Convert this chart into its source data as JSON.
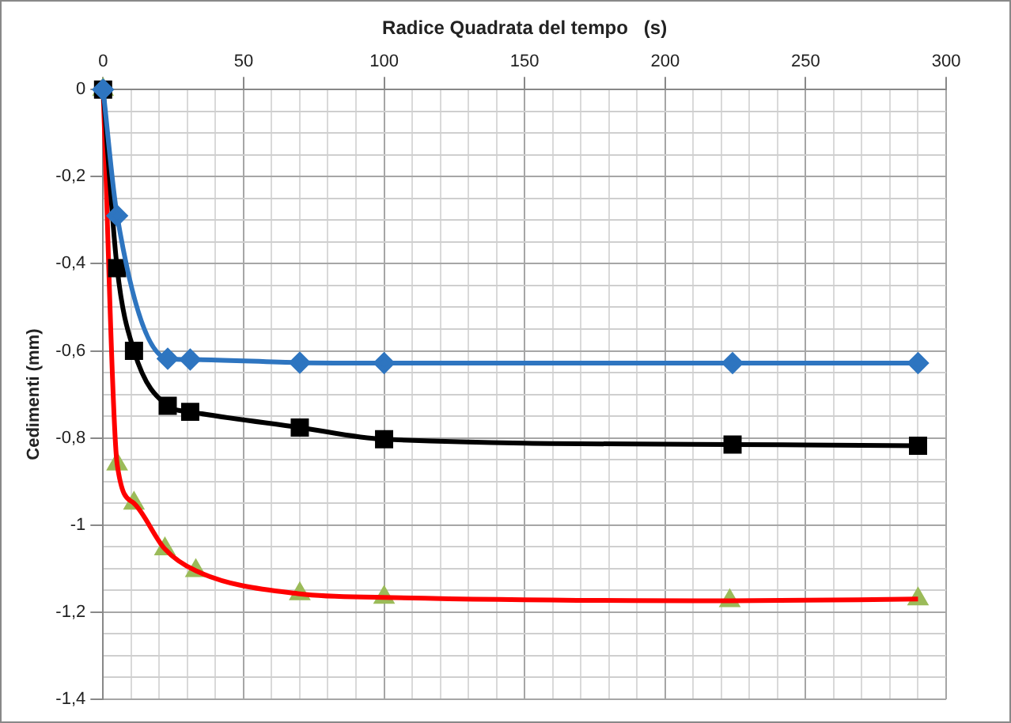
{
  "chart_data": {
    "type": "line",
    "xlabel": "Radice Quadrata del tempo   (s)",
    "ylabel": "Cedimenti (mm)",
    "xlim": [
      0,
      300
    ],
    "ylim": [
      -1.4,
      0
    ],
    "xticks": [
      0,
      {
        "value": 10,
        "label": null
      },
      {
        "value": 20,
        "label": null
      },
      {
        "value": 30,
        "label": null
      },
      {
        "value": 40,
        "label": null
      },
      50,
      {
        "value": 60,
        "label": null
      },
      {
        "value": 70,
        "label": null
      },
      {
        "value": 80,
        "label": null
      },
      {
        "value": 90,
        "label": null
      },
      100,
      {
        "value": 110,
        "label": null
      },
      {
        "value": 120,
        "label": null
      },
      {
        "value": 130,
        "label": null
      },
      {
        "value": 140,
        "label": null
      },
      150,
      {
        "value": 160,
        "label": null
      },
      {
        "value": 170,
        "label": null
      },
      {
        "value": 180,
        "label": null
      },
      {
        "value": 190,
        "label": null
      },
      200,
      {
        "value": 210,
        "label": null
      },
      {
        "value": 220,
        "label": null
      },
      {
        "value": 230,
        "label": null
      },
      {
        "value": 240,
        "label": null
      },
      250,
      {
        "value": 260,
        "label": null
      },
      {
        "value": 270,
        "label": null
      },
      {
        "value": 280,
        "label": null
      },
      {
        "value": 290,
        "label": null
      },
      300
    ],
    "yticks": [
      {
        "value": -1.4,
        "label": "-1,4"
      },
      {
        "value": -1.35,
        "label": null
      },
      {
        "value": -1.3,
        "label": null
      },
      {
        "value": -1.25,
        "label": null
      },
      {
        "value": -1.2,
        "label": "-1,2"
      },
      {
        "value": -1.15,
        "label": null
      },
      {
        "value": -1.1,
        "label": null
      },
      {
        "value": -1.05,
        "label": null
      },
      -1,
      {
        "value": -0.95,
        "label": null
      },
      {
        "value": -0.9,
        "label": null
      },
      {
        "value": -0.85,
        "label": null
      },
      {
        "value": -0.8,
        "label": "-0,8"
      },
      {
        "value": -0.75,
        "label": null
      },
      {
        "value": -0.7,
        "label": null
      },
      {
        "value": -0.65,
        "label": null
      },
      {
        "value": -0.6,
        "label": "-0,6"
      },
      {
        "value": -0.55,
        "label": null
      },
      {
        "value": -0.5,
        "label": null
      },
      {
        "value": -0.45,
        "label": null
      },
      {
        "value": -0.4,
        "label": "-0,4"
      },
      {
        "value": -0.35,
        "label": null
      },
      {
        "value": -0.3,
        "label": null
      },
      {
        "value": -0.25,
        "label": null
      },
      {
        "value": -0.2,
        "label": "-0,2"
      },
      {
        "value": -0.15,
        "label": null
      },
      {
        "value": -0.1,
        "label": null
      },
      {
        "value": -0.05,
        "label": null
      },
      0
    ],
    "grid": true,
    "line_style": "solid",
    "series": [
      {
        "color": "#2e75c0",
        "marker": "diamond",
        "x": [
          0,
          5,
          23,
          31,
          70,
          100,
          224,
          290
        ],
        "values": [
          0,
          -0.29,
          -0.618,
          -0.62,
          -0.627,
          -0.628,
          -0.628,
          -0.628
        ]
      },
      {
        "color": "#000000",
        "marker": "square",
        "x": [
          0,
          5,
          11,
          23,
          31,
          70,
          100,
          224,
          290
        ],
        "values": [
          0,
          -0.41,
          -0.6,
          -0.726,
          -0.74,
          -0.776,
          -0.803,
          -0.815,
          -0.818
        ]
      },
      {
        "type": "line",
        "color": "#ff0000",
        "marker": "none",
        "x": [
          0,
          5,
          11,
          22,
          33,
          70,
          100,
          223,
          290
        ],
        "values": [
          0,
          -0.86,
          -0.95,
          -1.055,
          -1.105,
          -1.158,
          -1.166,
          -1.174,
          -1.17
        ]
      },
      {
        "type": "scatter",
        "color": "#9bbb59",
        "marker": "triangle",
        "x": [
          0,
          5,
          11,
          22,
          33,
          70,
          100,
          223,
          290
        ],
        "values": [
          0,
          -0.86,
          -0.95,
          -1.055,
          -1.105,
          -1.158,
          -1.166,
          -1.174,
          -1.17
        ]
      }
    ]
  }
}
